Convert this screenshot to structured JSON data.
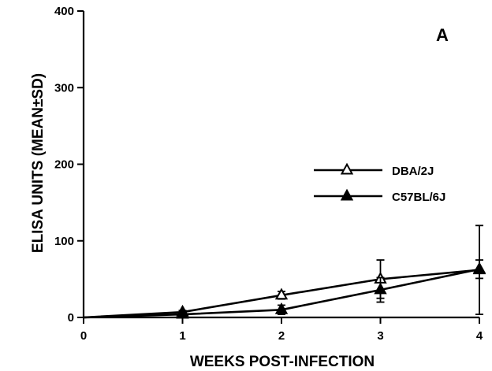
{
  "chart_data": {
    "type": "line",
    "panel_label": "A",
    "title": "",
    "xlabel": "WEEKS POST-INFECTION",
    "ylabel": "ELISA UNITS (MEAN±SD)",
    "xlim": [
      0,
      4
    ],
    "ylim": [
      0,
      400
    ],
    "x_ticks": [
      0,
      1,
      2,
      3,
      4
    ],
    "y_ticks": [
      0,
      100,
      200,
      300,
      400
    ],
    "grid": false,
    "legend_position": "center-right",
    "series": [
      {
        "name": "DBA/2J",
        "marker": "open-triangle",
        "x": [
          0,
          1,
          2,
          3,
          4
        ],
        "y": [
          0,
          7,
          29,
          50,
          62
        ],
        "sd": [
          0,
          2,
          5,
          25,
          58
        ]
      },
      {
        "name": "C57BL/6J",
        "marker": "filled-triangle",
        "x": [
          0,
          1,
          2,
          3,
          4
        ],
        "y": [
          0,
          4,
          10,
          36,
          63
        ],
        "sd": [
          0,
          2,
          6,
          16,
          12
        ]
      }
    ]
  }
}
